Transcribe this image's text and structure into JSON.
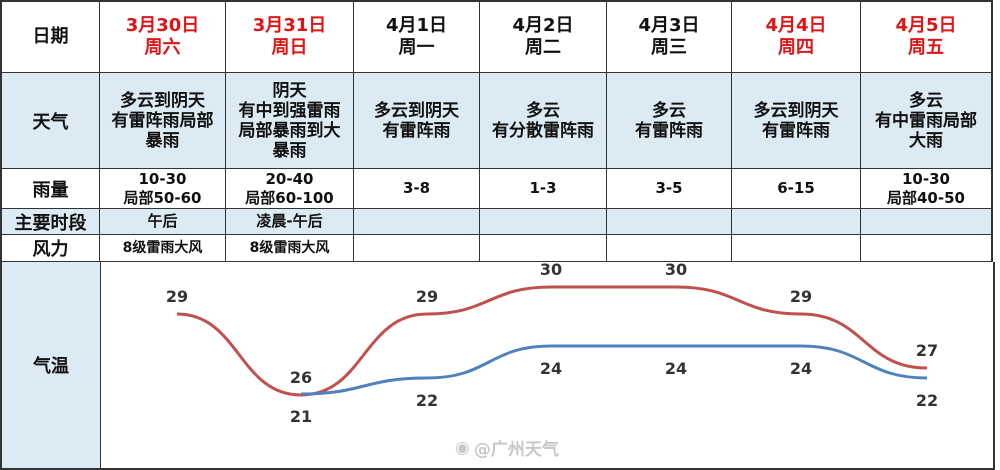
{
  "row_labels": {
    "date": "日期",
    "weather": "天气",
    "rain": "雨量",
    "period": "主要时段",
    "wind": "风力",
    "temp": "气温"
  },
  "days": [
    {
      "date": "3月30日",
      "weekday": "周六",
      "weekend": true,
      "weather": [
        "多云到阴天",
        "有雷阵雨局部",
        "暴雨"
      ],
      "rain": [
        "10-30",
        "局部50-60"
      ],
      "period": "午后",
      "wind": "8级雷雨大风"
    },
    {
      "date": "3月31日",
      "weekday": "周日",
      "weekend": true,
      "weather": [
        "阴天",
        "有中到强雷雨",
        "局部暴雨到大",
        "暴雨"
      ],
      "rain": [
        "20-40",
        "局部60-100"
      ],
      "period": "凌晨-午后",
      "wind": "8级雷雨大风"
    },
    {
      "date": "4月1日",
      "weekday": "周一",
      "weekend": false,
      "weather": [
        "多云到阴天",
        "有雷阵雨"
      ],
      "rain": [
        "3-8"
      ],
      "period": "",
      "wind": ""
    },
    {
      "date": "4月2日",
      "weekday": "周二",
      "weekend": false,
      "weather": [
        "多云",
        "有分散雷阵雨"
      ],
      "rain": [
        "1-3"
      ],
      "period": "",
      "wind": ""
    },
    {
      "date": "4月3日",
      "weekday": "周三",
      "weekend": false,
      "weather": [
        "多云",
        "有雷阵雨"
      ],
      "rain": [
        "3-5"
      ],
      "period": "",
      "wind": ""
    },
    {
      "date": "4月4日",
      "weekday": "周四",
      "weekend": true,
      "weather": [
        "多云到阴天",
        "有雷阵雨"
      ],
      "rain": [
        "6-15"
      ],
      "period": "",
      "wind": ""
    },
    {
      "date": "4月5日",
      "weekday": "周五",
      "weekend": true,
      "weather": [
        "多云",
        "有中雷雨局部",
        "大雨"
      ],
      "rain": [
        "10-30",
        "局部40-50"
      ],
      "period": "",
      "wind": ""
    }
  ],
  "temperature": {
    "high": [
      29,
      26,
      29,
      30,
      30,
      29,
      27
    ],
    "low": [
      null,
      21,
      22,
      24,
      24,
      24,
      22
    ],
    "high_color": "#c0504d",
    "low_color": "#4f81bd"
  },
  "colors": {
    "weekend_red": "#e01414",
    "band_blue": "#dcebf3"
  },
  "watermark": "@广州天气"
}
